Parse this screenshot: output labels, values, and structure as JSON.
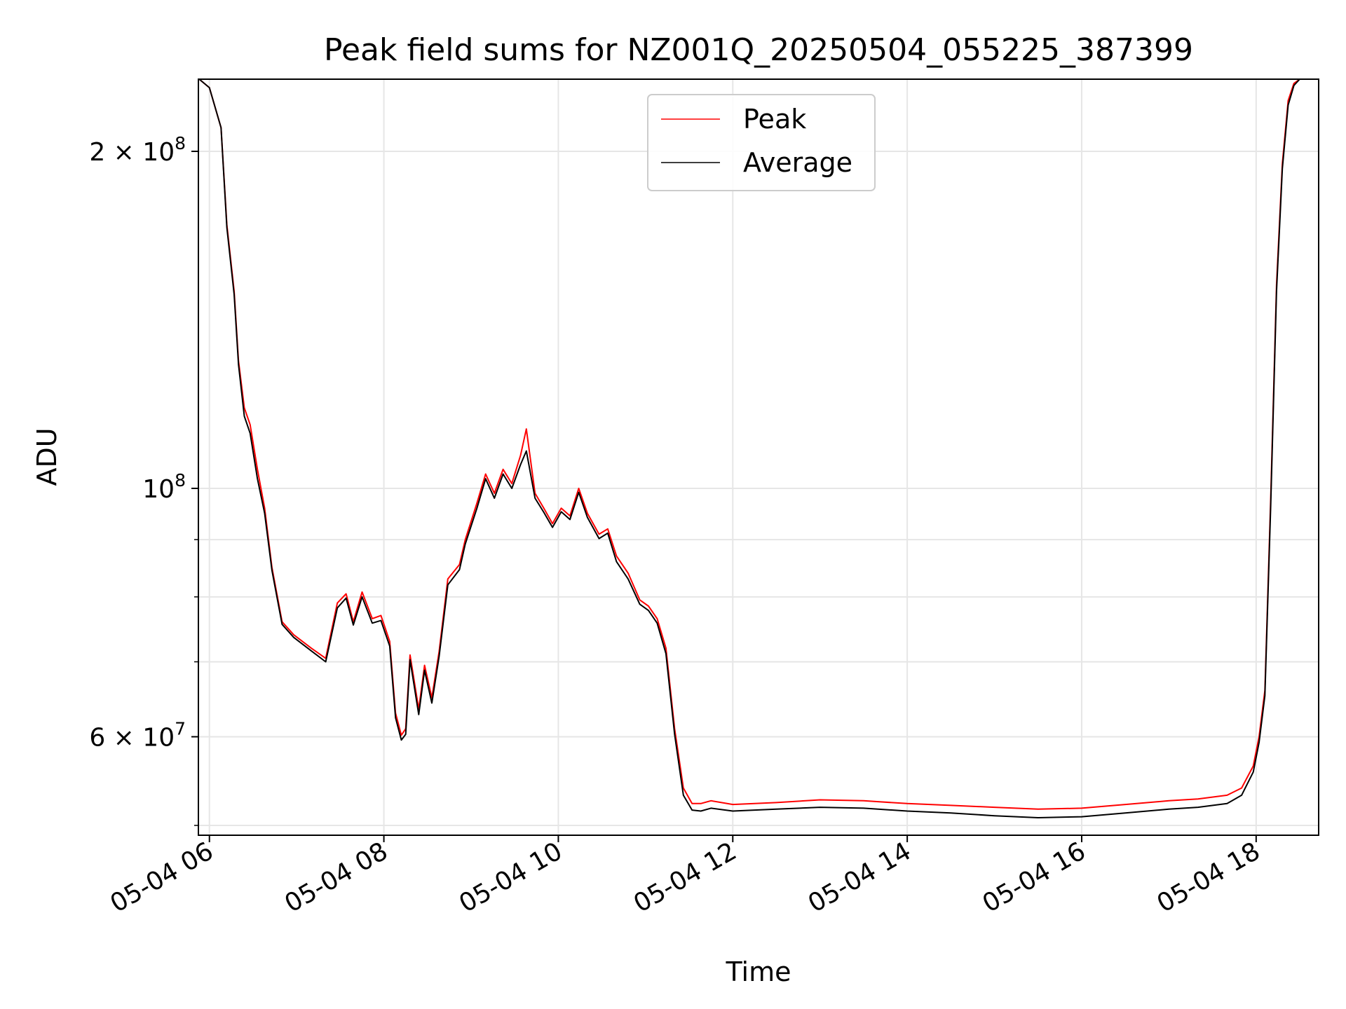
{
  "chart_data": {
    "type": "line",
    "title": "Peak field sums for NZ001Q_20250504_055225_387399",
    "xlabel": "Time",
    "ylabel": "ADU",
    "y_scale": "log",
    "grid": true,
    "legend_position": "upper center",
    "xlim": [
      "2025-05-04 05:52:25",
      "2025-05-04 18:43:00"
    ],
    "ylim": [
      49000000,
      232000000
    ],
    "x_ticks": [
      "05-04 06",
      "05-04 08",
      "05-04 10",
      "05-04 12",
      "05-04 14",
      "05-04 16",
      "05-04 18"
    ],
    "y_ticks": [
      {
        "value": 60000000,
        "mantissa": "6",
        "exponent": "7"
      },
      {
        "value": 100000000,
        "mantissa": "",
        "exponent": "8"
      },
      {
        "value": 200000000,
        "mantissa": "2",
        "exponent": "8"
      }
    ],
    "series": [
      {
        "name": "Peak",
        "color": "#ff0000",
        "x": [
          "2025-05-04 05:53",
          "2025-05-04 06:00",
          "2025-05-04 06:08",
          "2025-05-04 06:12",
          "2025-05-04 06:17",
          "2025-05-04 06:20",
          "2025-05-04 06:24",
          "2025-05-04 06:28",
          "2025-05-04 06:33",
          "2025-05-04 06:38",
          "2025-05-04 06:43",
          "2025-05-04 06:50",
          "2025-05-04 06:58",
          "2025-05-04 07:10",
          "2025-05-04 07:20",
          "2025-05-04 07:28",
          "2025-05-04 07:34",
          "2025-05-04 07:39",
          "2025-05-04 07:45",
          "2025-05-04 07:52",
          "2025-05-04 07:58",
          "2025-05-04 08:04",
          "2025-05-04 08:08",
          "2025-05-04 08:12",
          "2025-05-04 08:15",
          "2025-05-04 08:18",
          "2025-05-04 08:24",
          "2025-05-04 08:28",
          "2025-05-04 08:33",
          "2025-05-04 08:38",
          "2025-05-04 08:44",
          "2025-05-04 08:52",
          "2025-05-04 08:56",
          "2025-05-04 09:04",
          "2025-05-04 09:10",
          "2025-05-04 09:16",
          "2025-05-04 09:22",
          "2025-05-04 09:28",
          "2025-05-04 09:34",
          "2025-05-04 09:38",
          "2025-05-04 09:44",
          "2025-05-04 09:50",
          "2025-05-04 09:56",
          "2025-05-04 10:02",
          "2025-05-04 10:08",
          "2025-05-04 10:14",
          "2025-05-04 10:20",
          "2025-05-04 10:28",
          "2025-05-04 10:34",
          "2025-05-04 10:40",
          "2025-05-04 10:48",
          "2025-05-04 10:56",
          "2025-05-04 11:02",
          "2025-05-04 11:08",
          "2025-05-04 11:14",
          "2025-05-04 11:20",
          "2025-05-04 11:26",
          "2025-05-04 11:32",
          "2025-05-04 11:38",
          "2025-05-04 11:45",
          "2025-05-04 12:00",
          "2025-05-04 12:30",
          "2025-05-04 13:00",
          "2025-05-04 13:30",
          "2025-05-04 14:00",
          "2025-05-04 14:30",
          "2025-05-04 15:00",
          "2025-05-04 15:30",
          "2025-05-04 16:00",
          "2025-05-04 16:30",
          "2025-05-04 17:00",
          "2025-05-04 17:20",
          "2025-05-04 17:40",
          "2025-05-04 17:50",
          "2025-05-04 17:58",
          "2025-05-04 18:02",
          "2025-05-04 18:06",
          "2025-05-04 18:10",
          "2025-05-04 18:14",
          "2025-05-04 18:18",
          "2025-05-04 18:22",
          "2025-05-04 18:26",
          "2025-05-04 18:30",
          "2025-05-04 18:34"
        ],
        "y": [
          232000000,
          228000000,
          210000000,
          172000000,
          150000000,
          130000000,
          118000000,
          114000000,
          104000000,
          96000000,
          85000000,
          76000000,
          74000000,
          72000000,
          70500000,
          79000000,
          80500000,
          76000000,
          80800000,
          76500000,
          77000000,
          73000000,
          63000000,
          60200000,
          61000000,
          71000000,
          63500000,
          69500000,
          65000000,
          71500000,
          83000000,
          85500000,
          90000000,
          97000000,
          103000000,
          99000000,
          104000000,
          101000000,
          107000000,
          113000000,
          99000000,
          96000000,
          93000000,
          96000000,
          94500000,
          100000000,
          95000000,
          91000000,
          92000000,
          87000000,
          84000000,
          79500000,
          78500000,
          76500000,
          72000000,
          61000000,
          54000000,
          52300000,
          52300000,
          52600000,
          52200000,
          52400000,
          52700000,
          52600000,
          52300000,
          52100000,
          51900000,
          51700000,
          51800000,
          52200000,
          52600000,
          52800000,
          53200000,
          54000000,
          56500000,
          60000000,
          66000000,
          98000000,
          152000000,
          195000000,
          222000000,
          230000000,
          232000000,
          232000000
        ]
      },
      {
        "name": "Average",
        "color": "#000000",
        "x": [
          "2025-05-04 05:53",
          "2025-05-04 06:00",
          "2025-05-04 06:08",
          "2025-05-04 06:12",
          "2025-05-04 06:17",
          "2025-05-04 06:20",
          "2025-05-04 06:24",
          "2025-05-04 06:28",
          "2025-05-04 06:33",
          "2025-05-04 06:38",
          "2025-05-04 06:43",
          "2025-05-04 06:50",
          "2025-05-04 06:58",
          "2025-05-04 07:10",
          "2025-05-04 07:20",
          "2025-05-04 07:28",
          "2025-05-04 07:34",
          "2025-05-04 07:39",
          "2025-05-04 07:45",
          "2025-05-04 07:52",
          "2025-05-04 07:58",
          "2025-05-04 08:04",
          "2025-05-04 08:08",
          "2025-05-04 08:12",
          "2025-05-04 08:15",
          "2025-05-04 08:18",
          "2025-05-04 08:24",
          "2025-05-04 08:28",
          "2025-05-04 08:33",
          "2025-05-04 08:38",
          "2025-05-04 08:44",
          "2025-05-04 08:52",
          "2025-05-04 08:56",
          "2025-05-04 09:04",
          "2025-05-04 09:10",
          "2025-05-04 09:16",
          "2025-05-04 09:22",
          "2025-05-04 09:28",
          "2025-05-04 09:34",
          "2025-05-04 09:38",
          "2025-05-04 09:44",
          "2025-05-04 09:50",
          "2025-05-04 09:56",
          "2025-05-04 10:02",
          "2025-05-04 10:08",
          "2025-05-04 10:14",
          "2025-05-04 10:20",
          "2025-05-04 10:28",
          "2025-05-04 10:34",
          "2025-05-04 10:40",
          "2025-05-04 10:48",
          "2025-05-04 10:56",
          "2025-05-04 11:02",
          "2025-05-04 11:08",
          "2025-05-04 11:14",
          "2025-05-04 11:20",
          "2025-05-04 11:26",
          "2025-05-04 11:32",
          "2025-05-04 11:38",
          "2025-05-04 11:45",
          "2025-05-04 12:00",
          "2025-05-04 12:30",
          "2025-05-04 13:00",
          "2025-05-04 13:30",
          "2025-05-04 14:00",
          "2025-05-04 14:30",
          "2025-05-04 15:00",
          "2025-05-04 15:30",
          "2025-05-04 16:00",
          "2025-05-04 16:30",
          "2025-05-04 17:00",
          "2025-05-04 17:20",
          "2025-05-04 17:40",
          "2025-05-04 17:50",
          "2025-05-04 17:58",
          "2025-05-04 18:02",
          "2025-05-04 18:06",
          "2025-05-04 18:10",
          "2025-05-04 18:14",
          "2025-05-04 18:18",
          "2025-05-04 18:22",
          "2025-05-04 18:26",
          "2025-05-04 18:30",
          "2025-05-04 18:34"
        ],
        "y": [
          232000000,
          228000000,
          210000000,
          171000000,
          149000000,
          129000000,
          116000000,
          112000000,
          102000000,
          95000000,
          84500000,
          75600000,
          73600000,
          71600000,
          70000000,
          78200000,
          79800000,
          75500000,
          80000000,
          75800000,
          76200000,
          72300000,
          62400000,
          59600000,
          60300000,
          70300000,
          62800000,
          68800000,
          64300000,
          70800000,
          82000000,
          84600000,
          89200000,
          96000000,
          102000000,
          98000000,
          103000000,
          100000000,
          105000000,
          108000000,
          98000000,
          95200000,
          92300000,
          95300000,
          93800000,
          99200000,
          94200000,
          90200000,
          91200000,
          86000000,
          83000000,
          78800000,
          77800000,
          75800000,
          71200000,
          60300000,
          53200000,
          51600000,
          51500000,
          51800000,
          51500000,
          51700000,
          51900000,
          51800000,
          51500000,
          51300000,
          51000000,
          50800000,
          50900000,
          51300000,
          51700000,
          51900000,
          52300000,
          53200000,
          55800000,
          59300000,
          65300000,
          96500000,
          150000000,
          193000000,
          220000000,
          229000000,
          232000000,
          232000000
        ]
      }
    ]
  }
}
